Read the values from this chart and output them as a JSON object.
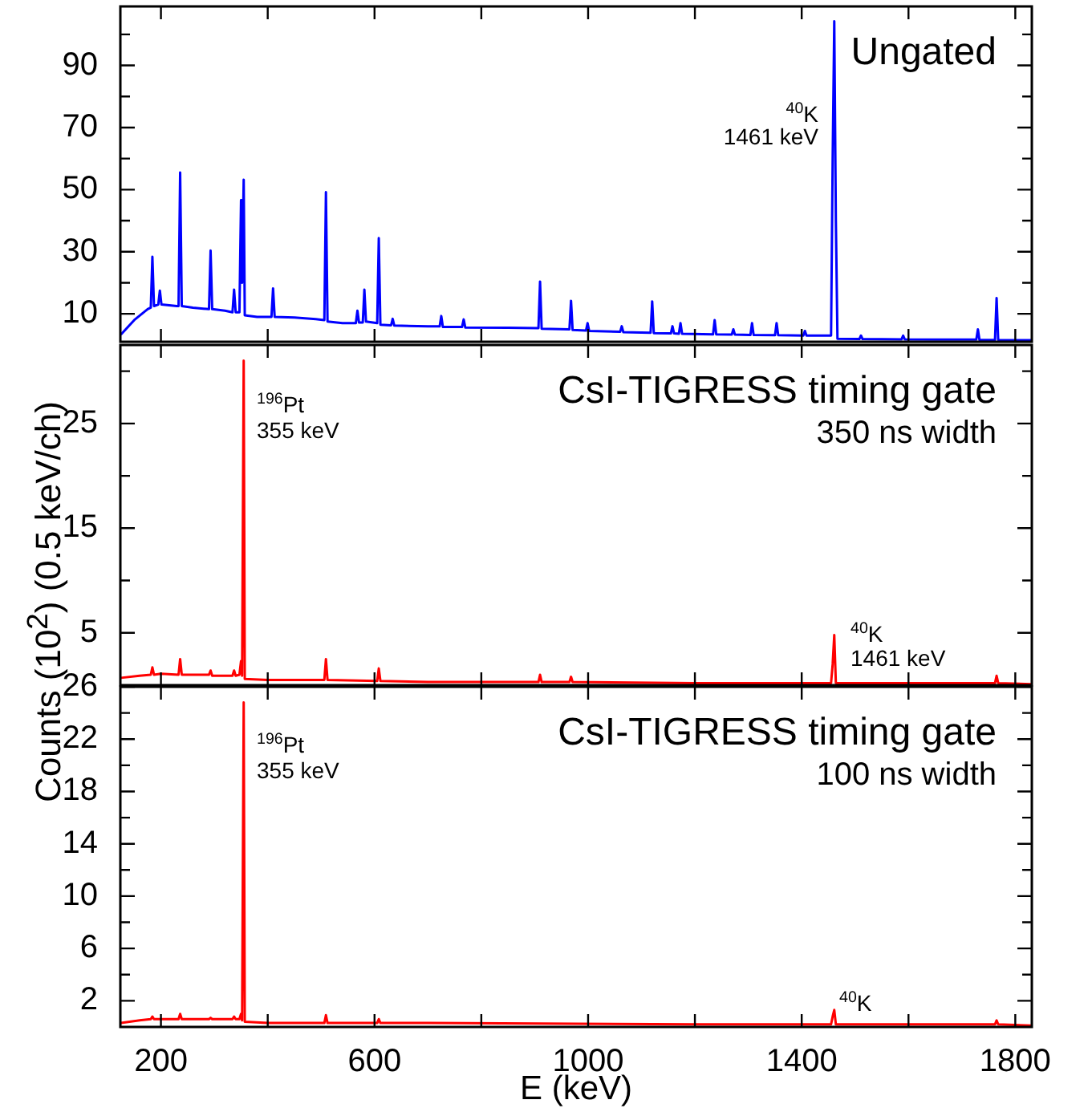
{
  "chart_data": [
    {
      "type": "line",
      "title": "Ungated",
      "xlim": [
        124,
        1831
      ],
      "ylim": [
        1,
        109
      ],
      "tick_labels": "y",
      "xticks": [
        200,
        {
          "value": 400,
          "label": null
        },
        600,
        {
          "value": 800,
          "label": null
        },
        1000,
        {
          "value": 1200,
          "label": null
        },
        1400,
        {
          "value": 1600,
          "label": null
        },
        1800
      ],
      "yticks": [
        10,
        {
          "value": 20,
          "label": null
        },
        30,
        {
          "value": 40,
          "label": null
        },
        50,
        {
          "value": 60,
          "label": null
        },
        70,
        {
          "value": 80,
          "label": null
        },
        90,
        {
          "value": 100,
          "label": null
        }
      ],
      "annotations": [
        "$^{40}$K",
        "1461 keV"
      ],
      "x": [
        125,
        150,
        175,
        181,
        184,
        187,
        195,
        198,
        201,
        230,
        233,
        236,
        239,
        260,
        290,
        293,
        296,
        320,
        334,
        337,
        340,
        347,
        350,
        352,
        355,
        357,
        380,
        407,
        410,
        413,
        450,
        490,
        506,
        509,
        512,
        540,
        565,
        568,
        571,
        578,
        581,
        584,
        605,
        608,
        611,
        631,
        634,
        637,
        700,
        722,
        725,
        728,
        764,
        767,
        770,
        850,
        907,
        910,
        913,
        965,
        968,
        971,
        996,
        999,
        1002,
        1060,
        1063,
        1066,
        1117,
        1120,
        1123,
        1155,
        1158,
        1161,
        1170,
        1173,
        1176,
        1234,
        1237,
        1240,
        1269,
        1272,
        1275,
        1304,
        1307,
        1310,
        1350,
        1353,
        1356,
        1403,
        1406,
        1409,
        1455,
        1458,
        1461,
        1464,
        1467,
        1508,
        1511,
        1514,
        1587,
        1590,
        1593,
        1650,
        1727,
        1730,
        1733,
        1762,
        1765,
        1768,
        1830
      ],
      "series": [
        {
          "color": "#0000ff",
          "values": [
            3.3,
            8,
            11.5,
            12,
            28.4,
            12.5,
            13,
            17.5,
            13,
            12.5,
            12.5,
            55.5,
            12.5,
            12,
            11.5,
            30.4,
            11.5,
            11,
            10.5,
            17.8,
            10.5,
            10.5,
            46.6,
            20,
            53.2,
            9.5,
            9,
            9,
            18.2,
            9,
            8.8,
            8.3,
            8,
            49.2,
            7.5,
            7,
            7,
            11,
            7.2,
            7.2,
            17.8,
            7.5,
            7,
            34.4,
            6.5,
            6.3,
            8.4,
            6.2,
            6,
            6,
            9.3,
            5.8,
            5.8,
            8.2,
            5.6,
            5.5,
            5.4,
            20.4,
            5.2,
            5,
            14.2,
            4.8,
            4.6,
            7,
            4.5,
            4.2,
            6,
            4.1,
            3.9,
            14,
            3.8,
            3.7,
            6,
            3.7,
            3.6,
            7,
            3.6,
            3.4,
            8,
            3.4,
            3.3,
            5,
            3.3,
            3.2,
            7,
            3.2,
            3.1,
            7,
            3.1,
            3,
            4.5,
            3,
            3,
            60,
            104.2,
            40,
            2,
            1.9,
            3,
            1.9,
            1.8,
            3,
            1.8,
            1.7,
            1.7,
            5,
            1.6,
            1.6,
            15.1,
            1.6,
            1.5
          ]
        }
      ]
    },
    {
      "type": "line",
      "title": "CsI-TIGRESS timing gate",
      "subtitle": "350 ns width",
      "ylabel": "Counts (10$^{2}$) (0.5 keV/ch)",
      "xlim": [
        124,
        1831
      ],
      "ylim": [
        0,
        32.5
      ],
      "tick_labels": "y",
      "xticks": [
        200,
        {
          "value": 400,
          "label": null
        },
        600,
        {
          "value": 800,
          "label": null
        },
        1000,
        {
          "value": 1200,
          "label": null
        },
        1400,
        {
          "value": 1600,
          "label": null
        },
        1800
      ],
      "yticks": [
        5,
        {
          "value": 10,
          "label": null
        },
        15,
        {
          "value": 20,
          "label": null
        },
        25,
        {
          "value": 30,
          "label": null
        }
      ],
      "annotations": [
        "$^{196}$Pt",
        "355 keV",
        "$^{40}$K",
        "1461 keV"
      ],
      "x": [
        125,
        160,
        181,
        184,
        187,
        200,
        233,
        236,
        239,
        260,
        290,
        293,
        296,
        334,
        337,
        340,
        347,
        350,
        352,
        355,
        357,
        400,
        506,
        509,
        512,
        605,
        608,
        611,
        700,
        907,
        910,
        913,
        965,
        968,
        971,
        1200,
        1455,
        1458,
        1461,
        1464,
        1600,
        1762,
        1765,
        1768,
        1830
      ],
      "series": [
        {
          "color": "#ff0000",
          "values": [
            0.7,
            0.9,
            1,
            1.7,
            1,
            1.1,
            1,
            2.5,
            1,
            1,
            1,
            1.4,
            0.9,
            0.9,
            1.4,
            0.9,
            1,
            2.3,
            0.9,
            31,
            0.6,
            0.5,
            0.5,
            2.5,
            0.5,
            0.4,
            1.6,
            0.4,
            0.3,
            0.3,
            1,
            0.3,
            0.3,
            0.8,
            0.3,
            0.2,
            0.2,
            2,
            4.8,
            0.2,
            0.2,
            0.2,
            0.9,
            0.2,
            0.1
          ]
        }
      ]
    },
    {
      "type": "line",
      "title": "CsI-TIGRESS timing gate",
      "subtitle": "100 ns width",
      "xlabel": "E (keV)",
      "xlim": [
        124,
        1831
      ],
      "ylim": [
        0,
        26
      ],
      "xticks": [
        200,
        {
          "value": 400,
          "label": null
        },
        600,
        {
          "value": 800,
          "label": null
        },
        1000,
        {
          "value": 1200,
          "label": null
        },
        1400,
        {
          "value": 1600,
          "label": null
        },
        1800
      ],
      "yticks": [
        2,
        {
          "value": 4,
          "label": null
        },
        6,
        {
          "value": 8,
          "label": null
        },
        10,
        {
          "value": 12,
          "label": null
        },
        14,
        {
          "value": 16,
          "label": null
        },
        18,
        {
          "value": 20,
          "label": null
        },
        22,
        {
          "value": 24,
          "label": null
        },
        26
      ],
      "annotations": [
        "$^{196}$Pt",
        "355 keV",
        "$^{40}$K"
      ],
      "x": [
        125,
        160,
        181,
        184,
        187,
        200,
        233,
        236,
        239,
        260,
        290,
        293,
        296,
        334,
        337,
        340,
        347,
        350,
        352,
        355,
        357,
        400,
        506,
        509,
        512,
        605,
        608,
        611,
        700,
        1200,
        1455,
        1458,
        1461,
        1464,
        1600,
        1762,
        1765,
        1768,
        1830
      ],
      "series": [
        {
          "color": "#ff0000",
          "values": [
            0.3,
            0.5,
            0.6,
            0.8,
            0.6,
            0.6,
            0.6,
            1,
            0.6,
            0.6,
            0.6,
            0.7,
            0.6,
            0.6,
            0.8,
            0.6,
            0.6,
            1,
            0.5,
            24.8,
            0.4,
            0.3,
            0.3,
            0.9,
            0.3,
            0.3,
            0.6,
            0.3,
            0.3,
            0.2,
            0.2,
            0.8,
            1.3,
            0.2,
            0.2,
            0.2,
            0.5,
            0.2,
            0.1
          ]
        }
      ]
    }
  ]
}
